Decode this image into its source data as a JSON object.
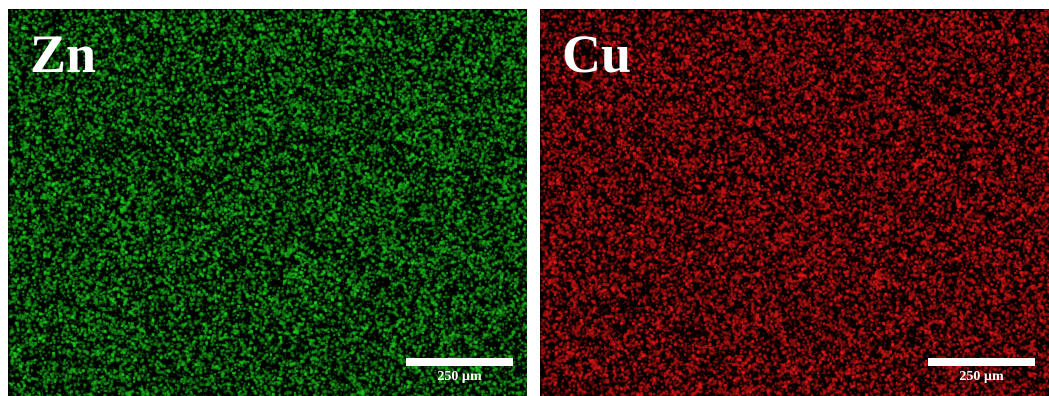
{
  "panels": [
    {
      "element": "Zn",
      "color": "#22e022",
      "scale_bar_label": "250 µm"
    },
    {
      "element": "Cu",
      "color": "#ff1a1a",
      "scale_bar_label": "250 µm"
    }
  ]
}
